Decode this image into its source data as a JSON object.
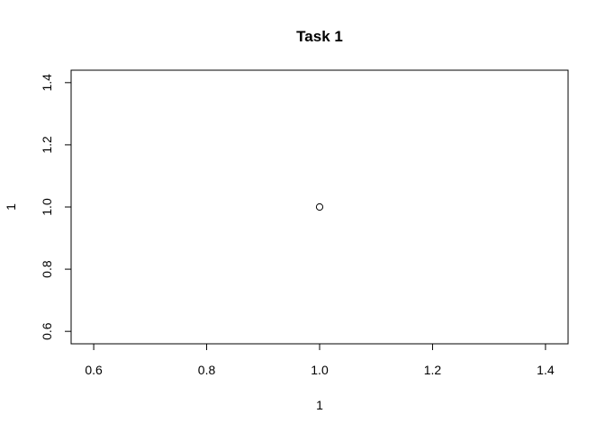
{
  "chart_data": {
    "type": "scatter",
    "title": "Task 1",
    "xlabel": "1",
    "ylabel": "1",
    "xlim": [
      0.56,
      1.44
    ],
    "ylim": [
      0.56,
      1.44
    ],
    "x_ticks": [
      0.6,
      0.8,
      1.0,
      1.2,
      1.4
    ],
    "y_ticks": [
      0.6,
      0.8,
      1.0,
      1.2,
      1.4
    ],
    "x_tick_labels": [
      "0.6",
      "0.8",
      "1.0",
      "1.2",
      "1.4"
    ],
    "y_tick_labels": [
      "0.6",
      "0.8",
      "1.0",
      "1.2",
      "1.4"
    ],
    "grid": false,
    "marker": "open-circle",
    "point_color": "#000000",
    "series": [
      {
        "x": [
          1.0
        ],
        "y": [
          1.0
        ]
      }
    ]
  }
}
